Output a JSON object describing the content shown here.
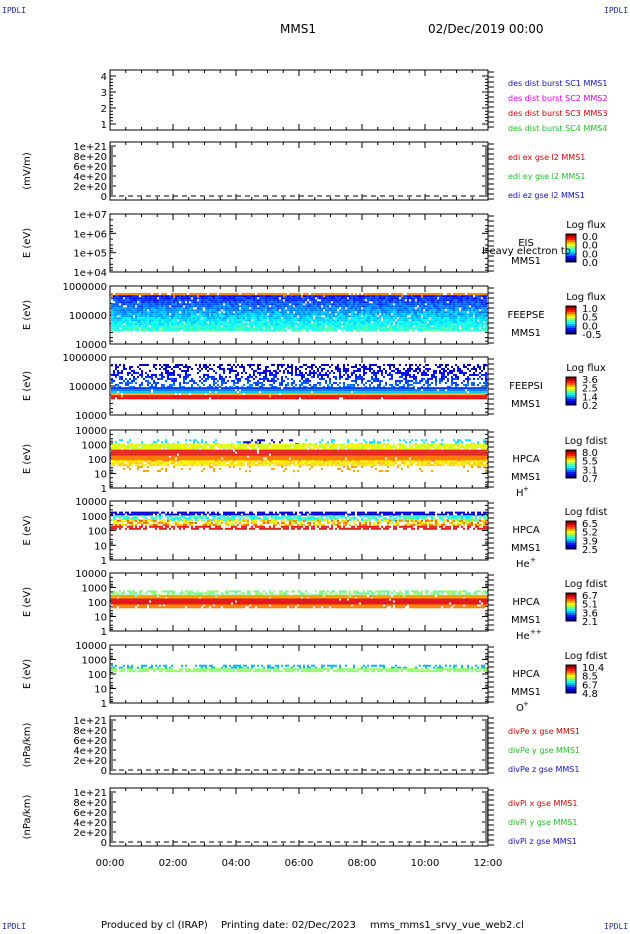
{
  "header": {
    "corner_label": "IPDLI",
    "spacecraft": "MMS1",
    "date": "02/Dec/2019 00:00"
  },
  "footer": {
    "produced_by": "Produced by cl (IRAP)",
    "printing_date": "Printing date: 02/Dec/2023",
    "script_name": "mms_mms1_srvy_vue_web2.cl"
  },
  "colors": {
    "red": "#d40000",
    "green": "#20c020",
    "blue": "#1010c0",
    "magenta": "#e000e0",
    "spectrogram_low": "#0000ff",
    "spectrogram_high": "#ff0000"
  },
  "chart_data": [
    {
      "type": "line",
      "panel": "des-dist-burst",
      "ylabel": "",
      "ylim": [
        0.5,
        4.5
      ],
      "yticks": [
        "4",
        "3",
        "2",
        "1"
      ],
      "x_axis": [
        "00:00",
        "02:00",
        "04:00",
        "06:00",
        "08:00",
        "10:00",
        "12:00"
      ],
      "series": [
        {
          "name": "des dist burst SC1 MMS1",
          "color": "#1010c0",
          "values": []
        },
        {
          "name": "des dist burst SC2 MMS2",
          "color": "#e000e0",
          "values": []
        },
        {
          "name": "des dist burst SC3 MMS3",
          "color": "#d40000",
          "values": []
        },
        {
          "name": "des dist burst SC4 MMS4",
          "color": "#20c020",
          "values": []
        }
      ]
    },
    {
      "type": "line",
      "panel": "edi-e-field",
      "ylabel": "(mV/m)",
      "yticks": [
        "1e+21",
        "8e+20",
        "6e+20",
        "4e+20",
        "2e+20",
        "0"
      ],
      "series": [
        {
          "name": "edi ex gse l2 MMS1",
          "color": "#d40000",
          "values": []
        },
        {
          "name": "edi ey gse l2 MMS1",
          "color": "#20c020",
          "values": []
        },
        {
          "name": "edi ez gse l2 MMS1",
          "color": "#1010c0",
          "values": []
        }
      ]
    },
    {
      "type": "heatmap",
      "panel": "eis",
      "ylabel": "E (eV)",
      "yticks": [
        "1e+07",
        "1e+06",
        "1e+05",
        "1e+04"
      ],
      "scale": "log",
      "instrument": "EIS",
      "spacecraft": "MMS1",
      "overlay_text": "Heavy electron to",
      "colorbar_title": "Log flux",
      "colorbar_ticks": [
        "0.0",
        "0.0",
        "0.0",
        "0.0"
      ]
    },
    {
      "type": "heatmap",
      "panel": "feepse",
      "ylabel": "E (eV)",
      "yticks": [
        "1000000",
        "100000",
        "10000"
      ],
      "scale": "log",
      "instrument": "FEEPSE",
      "spacecraft": "MMS1",
      "colorbar_title": "Log flux",
      "colorbar_ticks": [
        "1.0",
        "0.5",
        "0.0",
        "-0.5"
      ]
    },
    {
      "type": "heatmap",
      "panel": "feepsi",
      "ylabel": "E (eV)",
      "yticks": [
        "1000000",
        "100000",
        "10000"
      ],
      "scale": "log",
      "instrument": "FEEPSI",
      "spacecraft": "MMS1",
      "colorbar_title": "Log flux",
      "colorbar_ticks": [
        "3.6",
        "2.5",
        "1.4",
        "0.2"
      ]
    },
    {
      "type": "heatmap",
      "panel": "hpca-h",
      "ylabel": "E (eV)",
      "yticks": [
        "10000",
        "1000",
        "100",
        "10",
        "1"
      ],
      "scale": "log",
      "instrument": "HPCA",
      "spacecraft": "MMS1",
      "species": "H",
      "charge": "+",
      "colorbar_title": "Log fdist",
      "colorbar_ticks": [
        "8.0",
        "5.5",
        "3.1",
        "0.7"
      ]
    },
    {
      "type": "heatmap",
      "panel": "hpca-he",
      "ylabel": "E (eV)",
      "yticks": [
        "10000",
        "1000",
        "100",
        "10",
        "1"
      ],
      "scale": "log",
      "instrument": "HPCA",
      "spacecraft": "MMS1",
      "species": "He",
      "charge": "+",
      "colorbar_title": "Log fdist",
      "colorbar_ticks": [
        "6.5",
        "5.2",
        "3.9",
        "2.5"
      ]
    },
    {
      "type": "heatmap",
      "panel": "hpca-he2",
      "ylabel": "E (eV)",
      "yticks": [
        "10000",
        "1000",
        "100",
        "10",
        "1"
      ],
      "scale": "log",
      "instrument": "HPCA",
      "spacecraft": "MMS1",
      "species": "He",
      "charge": "++",
      "colorbar_title": "Log fdist",
      "colorbar_ticks": [
        "6.7",
        "5.1",
        "3.6",
        "2.1"
      ]
    },
    {
      "type": "heatmap",
      "panel": "hpca-o",
      "ylabel": "E (eV)",
      "yticks": [
        "10000",
        "1000",
        "100",
        "10",
        "1"
      ],
      "scale": "log",
      "instrument": "HPCA",
      "spacecraft": "MMS1",
      "species": "O",
      "charge": "+",
      "colorbar_title": "Log fdist",
      "colorbar_ticks": [
        "10.4",
        "8.5",
        "6.7",
        "4.8"
      ]
    },
    {
      "type": "line",
      "panel": "divpe",
      "ylabel": "(nPa/km)",
      "yticks": [
        "1e+21",
        "8e+20",
        "6e+20",
        "4e+20",
        "2e+20",
        "0"
      ],
      "series": [
        {
          "name": "divPe x gse MMS1",
          "color": "#d40000",
          "values": []
        },
        {
          "name": "divPe y gse MMS1",
          "color": "#20c020",
          "values": []
        },
        {
          "name": "divPe z gse MMS1",
          "color": "#1010c0",
          "values": []
        }
      ]
    },
    {
      "type": "line",
      "panel": "divpi",
      "ylabel": "(nPa/km)",
      "yticks": [
        "1e+21",
        "8e+20",
        "6e+20",
        "4e+20",
        "2e+20",
        "0"
      ],
      "x_axis": [
        "00:00",
        "02:00",
        "04:00",
        "06:00",
        "08:00",
        "10:00",
        "12:00"
      ],
      "series": [
        {
          "name": "divPi x gse MMS1",
          "color": "#d40000",
          "values": []
        },
        {
          "name": "divPi y gse MMS1",
          "color": "#20c020",
          "values": []
        },
        {
          "name": "divPi z gse MMS1",
          "color": "#1010c0",
          "values": []
        }
      ]
    }
  ]
}
